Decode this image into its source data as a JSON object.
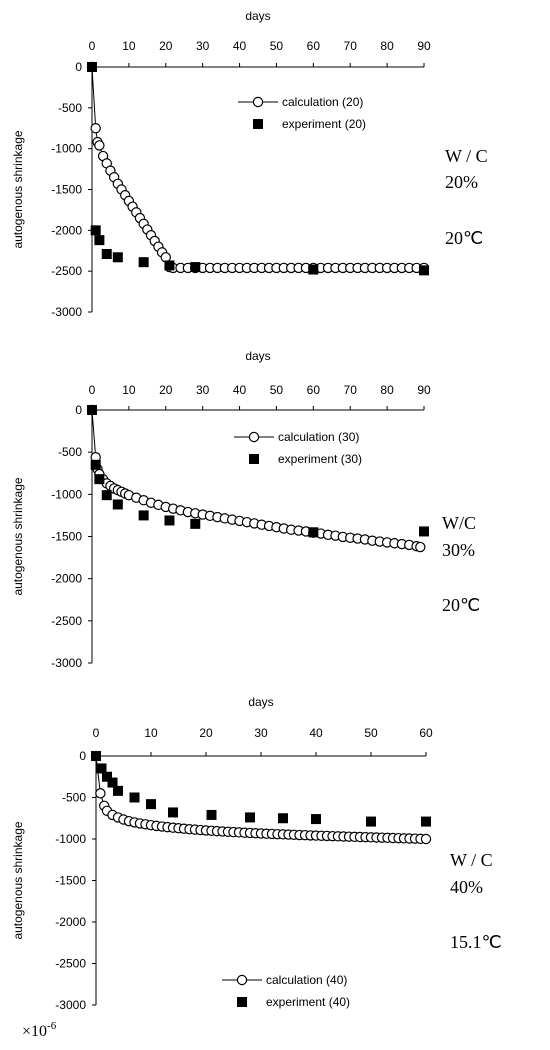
{
  "chart_data": [
    {
      "type": "scatter",
      "xlabel": "days",
      "ylabel": "autogenous shrinkage",
      "xlim": [
        0,
        90
      ],
      "ylim": [
        -3000,
        0
      ],
      "xticks": [
        0,
        10,
        20,
        30,
        40,
        50,
        60,
        70,
        80,
        90
      ],
      "yticks": [
        0,
        -500,
        -1000,
        -1500,
        -2000,
        -2500,
        -3000
      ],
      "legend_position": "top-right",
      "side_labels": [
        "W / C",
        "20%",
        "20℃"
      ],
      "series": [
        {
          "name": "calculation (20)",
          "marker": "open-circle",
          "x": [
            0,
            1,
            1.5,
            2,
            3,
            4,
            5,
            6,
            7,
            8,
            9,
            10,
            11,
            12,
            13,
            14,
            15,
            16,
            17,
            18,
            19,
            20,
            21,
            22,
            24,
            26,
            28,
            30,
            32,
            34,
            36,
            38,
            40,
            42,
            44,
            46,
            48,
            50,
            52,
            54,
            56,
            58,
            60,
            62,
            64,
            66,
            68,
            70,
            72,
            74,
            76,
            78,
            80,
            82,
            84,
            86,
            88,
            90
          ],
          "y": [
            0,
            -750,
            -920,
            -960,
            -1090,
            -1180,
            -1270,
            -1350,
            -1430,
            -1500,
            -1570,
            -1640,
            -1710,
            -1780,
            -1850,
            -1920,
            -1990,
            -2060,
            -2130,
            -2200,
            -2270,
            -2330,
            -2450,
            -2460,
            -2460,
            -2460,
            -2460,
            -2460,
            -2460,
            -2460,
            -2460,
            -2460,
            -2460,
            -2460,
            -2460,
            -2460,
            -2460,
            -2460,
            -2460,
            -2460,
            -2460,
            -2460,
            -2460,
            -2460,
            -2460,
            -2460,
            -2460,
            -2460,
            -2460,
            -2460,
            -2460,
            -2460,
            -2460,
            -2460,
            -2460,
            -2460,
            -2460,
            -2460
          ]
        },
        {
          "name": "experiment (20)",
          "marker": "filled-square",
          "x": [
            0,
            1,
            2,
            4,
            7,
            14,
            21,
            28,
            60,
            90
          ],
          "y": [
            0,
            -2000,
            -2120,
            -2290,
            -2330,
            -2390,
            -2430,
            -2450,
            -2480,
            -2490
          ]
        }
      ]
    },
    {
      "type": "scatter",
      "xlabel": "days",
      "ylabel": "autogenous shrinkage",
      "xlim": [
        0,
        90
      ],
      "ylim": [
        -3000,
        0
      ],
      "xticks": [
        0,
        10,
        20,
        30,
        40,
        50,
        60,
        70,
        80,
        90
      ],
      "yticks": [
        0,
        -500,
        -1000,
        -1500,
        -2000,
        -2500,
        -3000
      ],
      "legend_position": "top-right",
      "side_labels": [
        "W/C",
        "30%",
        "20℃"
      ],
      "series": [
        {
          "name": "calculation (30)",
          "marker": "open-circle",
          "x": [
            0,
            1,
            1.5,
            2,
            3,
            4,
            5,
            6,
            7,
            8,
            9,
            10,
            12,
            14,
            16,
            18,
            20,
            22,
            24,
            26,
            28,
            30,
            32,
            34,
            36,
            38,
            40,
            42,
            44,
            46,
            48,
            50,
            52,
            54,
            56,
            58,
            60,
            62,
            64,
            66,
            68,
            70,
            72,
            74,
            76,
            78,
            80,
            82,
            84,
            86,
            88,
            89
          ],
          "y": [
            0,
            -560,
            -700,
            -760,
            -820,
            -870,
            -900,
            -930,
            -950,
            -970,
            -990,
            -1010,
            -1040,
            -1070,
            -1100,
            -1125,
            -1150,
            -1170,
            -1190,
            -1210,
            -1225,
            -1240,
            -1255,
            -1270,
            -1285,
            -1300,
            -1315,
            -1330,
            -1345,
            -1360,
            -1375,
            -1390,
            -1405,
            -1420,
            -1430,
            -1440,
            -1455,
            -1465,
            -1480,
            -1490,
            -1505,
            -1515,
            -1525,
            -1535,
            -1550,
            -1560,
            -1570,
            -1580,
            -1590,
            -1600,
            -1615,
            -1625
          ]
        },
        {
          "name": "experiment (30)",
          "marker": "filled-square",
          "x": [
            0,
            1,
            2,
            4,
            7,
            14,
            21,
            28,
            60,
            90
          ],
          "y": [
            0,
            -650,
            -820,
            -1010,
            -1120,
            -1250,
            -1310,
            -1350,
            -1450,
            -1440
          ]
        }
      ]
    },
    {
      "type": "scatter",
      "xlabel": "days",
      "ylabel": "autogenous shrinkage",
      "xlim": [
        0,
        60
      ],
      "ylim": [
        -3000,
        0
      ],
      "xticks": [
        0,
        10,
        20,
        30,
        40,
        50,
        60
      ],
      "yticks": [
        0,
        -500,
        -1000,
        -1500,
        -2000,
        -2500,
        -3000
      ],
      "legend_position": "bottom-right",
      "side_labels": [
        "W / C",
        "40%",
        "15.1℃"
      ],
      "scale_label": "×10",
      "scale_exponent": "-6",
      "series": [
        {
          "name": "calculation (40)",
          "marker": "open-circle",
          "x": [
            0,
            0.8,
            1.5,
            2,
            3,
            4,
            5,
            6,
            7,
            8,
            9,
            10,
            11,
            12,
            13,
            14,
            15,
            16,
            17,
            18,
            19,
            20,
            21,
            22,
            23,
            24,
            25,
            26,
            27,
            28,
            29,
            30,
            31,
            32,
            33,
            34,
            35,
            36,
            37,
            38,
            39,
            40,
            41,
            42,
            43,
            44,
            45,
            46,
            47,
            48,
            49,
            50,
            51,
            52,
            53,
            54,
            55,
            56,
            57,
            58,
            59,
            60
          ],
          "y": [
            0,
            -450,
            -600,
            -660,
            -710,
            -740,
            -765,
            -785,
            -800,
            -812,
            -823,
            -833,
            -842,
            -850,
            -857,
            -864,
            -870,
            -876,
            -882,
            -887,
            -892,
            -897,
            -901,
            -905,
            -909,
            -913,
            -917,
            -920,
            -924,
            -927,
            -930,
            -933,
            -936,
            -939,
            -942,
            -944,
            -947,
            -949,
            -952,
            -954,
            -957,
            -959,
            -961,
            -963,
            -966,
            -968,
            -970,
            -972,
            -974,
            -976,
            -978,
            -980,
            -982,
            -984,
            -986,
            -988,
            -990,
            -992,
            -994,
            -996,
            -998,
            -1000
          ]
        },
        {
          "name": "experiment (40)",
          "marker": "filled-square",
          "x": [
            0,
            1,
            2,
            3,
            4,
            7,
            10,
            14,
            21,
            28,
            34,
            40,
            50,
            60
          ],
          "y": [
            0,
            -150,
            -250,
            -320,
            -420,
            -500,
            -580,
            -680,
            -710,
            -740,
            -750,
            -760,
            -790,
            -790
          ]
        }
      ]
    }
  ]
}
